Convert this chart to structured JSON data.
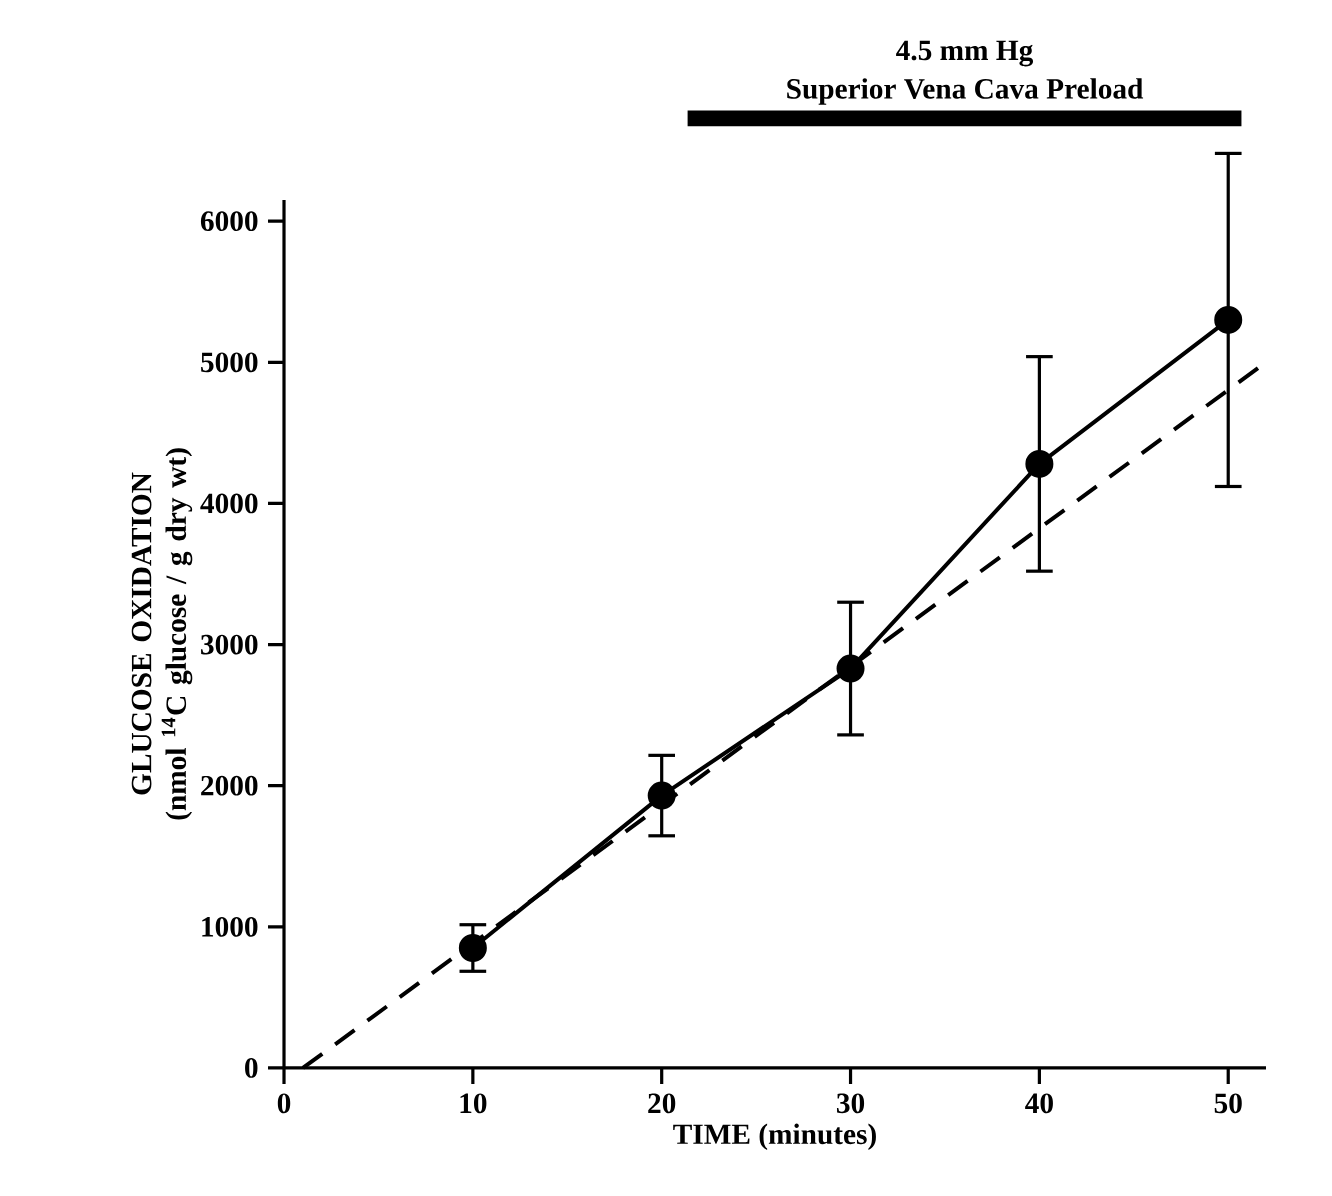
{
  "chart_data": {
    "type": "line",
    "xlabel": "TIME (minutes)",
    "ylabel": "GLUCOSE OXIDATION (nmol $^{14}$C glucose / g dry wt)",
    "xlim": [
      0,
      52
    ],
    "ylim": [
      0,
      6150
    ],
    "xticks": [
      0,
      10,
      20,
      30,
      40,
      50
    ],
    "yticks": [
      0,
      1000,
      2000,
      3000,
      4000,
      5000,
      6000
    ],
    "series": [
      {
        "color": "#000000",
        "x": [
          10,
          20,
          30,
          40,
          50
        ],
        "values": [
          850,
          1930,
          2830,
          4280,
          5300
        ],
        "errors": [
          165,
          285,
          470,
          760,
          1180
        ],
        "marker": "circle",
        "line_style": "solid"
      },
      {
        "color": "#000000",
        "x": [
          1,
          52
        ],
        "values": [
          0,
          5000
        ],
        "marker": "none",
        "line_style": "dashed"
      }
    ],
    "annotations": [
      "Superior Vena Cava Preload",
      "4.5 mm Hg"
    ]
  }
}
